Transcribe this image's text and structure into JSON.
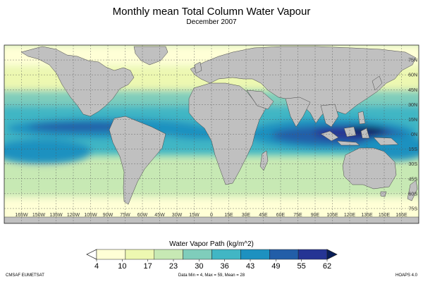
{
  "title": "Monthly mean Total Column Water Vapour",
  "subtitle": "December 2007",
  "colorbar": {
    "title": "Water Vapor Path (kg/m^2)",
    "ticks": [
      "4",
      "10",
      "17",
      "23",
      "30",
      "36",
      "43",
      "49",
      "55",
      "62"
    ],
    "colors": [
      "#ffffff",
      "#ffffd6",
      "#edf8b1",
      "#c7e9b4",
      "#7fcdbb",
      "#41b6c4",
      "#1d91c0",
      "#225ea8",
      "#253494",
      "#081d58"
    ]
  },
  "map": {
    "lon_labels": [
      "165W",
      "150W",
      "135W",
      "120W",
      "105W",
      "90W",
      "75W",
      "60W",
      "45W",
      "30W",
      "15W",
      "0",
      "15E",
      "30E",
      "45E",
      "60E",
      "75E",
      "90E",
      "105E",
      "120E",
      "135E",
      "150E",
      "165E"
    ],
    "lat_labels": [
      "75N",
      "60N",
      "45N",
      "30N",
      "15N",
      "0N",
      "15S",
      "30S",
      "45S",
      "60S",
      "75S"
    ],
    "land_color": "#c0c0c0"
  },
  "footer": {
    "left": "CMSAF EUMETSAT",
    "middle": "Data Min = 4, Max = 59, Mean = 28",
    "right": "HOAPS 4.0"
  }
}
